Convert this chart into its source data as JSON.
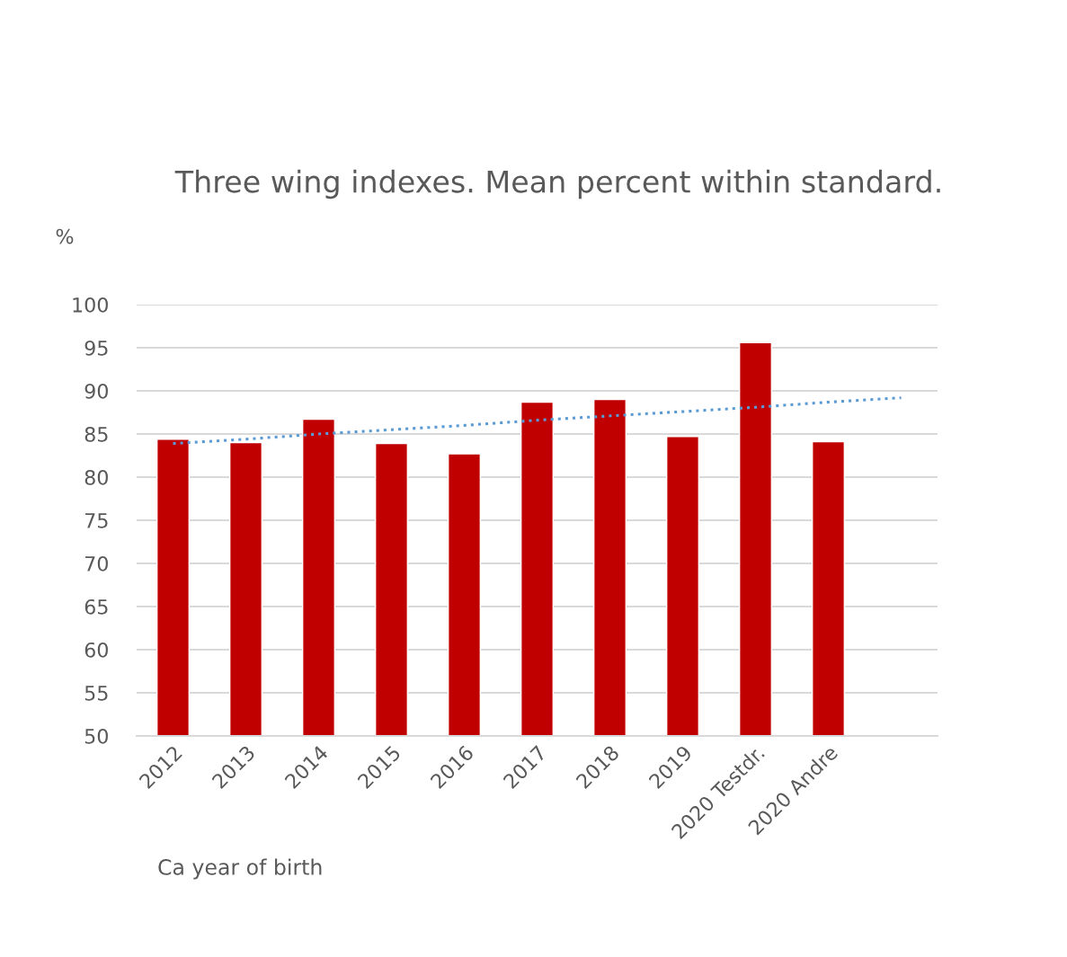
{
  "chart_data": {
    "type": "bar",
    "title": "Three wing indexes. Mean percent within standard.",
    "ylabel": "%",
    "xlabel": "Ca year of birth",
    "categories": [
      "2012",
      "2013",
      "2014",
      "2015",
      "2016",
      "2017",
      "2018",
      "2019",
      "2020 Testdr.",
      "2020 Andre",
      null
    ],
    "series": [
      {
        "color": "#c00000",
        "values": [
          84.4,
          84.0,
          86.7,
          83.9,
          82.7,
          88.7,
          89.0,
          84.7,
          95.6,
          84.1,
          null
        ]
      },
      {
        "type": "line",
        "color": "#5b9bd5",
        "line_style": "dotted",
        "marker": "none",
        "values": [
          83.9,
          84.4,
          85.0,
          85.5,
          86.0,
          86.6,
          87.1,
          87.6,
          88.1,
          88.7,
          89.2
        ]
      }
    ],
    "ylim": [
      50,
      100
    ],
    "yticks": [
      50,
      55,
      60,
      65,
      70,
      75,
      80,
      85,
      90,
      95,
      100
    ],
    "grid": "y"
  }
}
